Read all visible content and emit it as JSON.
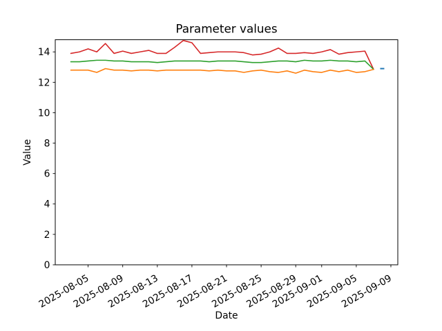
{
  "chart_data": {
    "type": "line",
    "title": "Parameter values",
    "xlabel": "Date",
    "ylabel": "Value",
    "ylim": [
      0,
      14.8
    ],
    "x_margin_frac": 0.05,
    "grid": false,
    "legend": "none",
    "background": "#ffffff",
    "yticks": [
      0,
      2,
      4,
      6,
      8,
      10,
      12,
      14
    ],
    "xticks": [
      "2025-08-05",
      "2025-08-09",
      "2025-08-13",
      "2025-08-17",
      "2025-08-21",
      "2025-08-25",
      "2025-08-29",
      "2025-09-01",
      "2025-09-05",
      "2025-09-09"
    ],
    "dates": [
      "2025-08-03",
      "2025-08-04",
      "2025-08-05",
      "2025-08-06",
      "2025-08-07",
      "2025-08-08",
      "2025-08-09",
      "2025-08-10",
      "2025-08-11",
      "2025-08-12",
      "2025-08-13",
      "2025-08-14",
      "2025-08-15",
      "2025-08-16",
      "2025-08-17",
      "2025-08-18",
      "2025-08-19",
      "2025-08-20",
      "2025-08-21",
      "2025-08-22",
      "2025-08-23",
      "2025-08-24",
      "2025-08-25",
      "2025-08-26",
      "2025-08-27",
      "2025-08-28",
      "2025-08-29",
      "2025-08-30",
      "2025-08-31",
      "2025-09-01",
      "2025-09-02",
      "2025-09-03",
      "2025-09-04",
      "2025-09-05",
      "2025-09-06",
      "2025-09-07"
    ],
    "series": [
      {
        "name": "series-red",
        "color": "#d62728",
        "values": [
          13.9,
          14.0,
          14.2,
          14.0,
          14.55,
          13.9,
          14.05,
          13.9,
          14.0,
          14.1,
          13.9,
          13.9,
          14.3,
          14.75,
          14.6,
          13.9,
          13.95,
          14.0,
          14.0,
          14.0,
          13.95,
          13.8,
          13.85,
          14.0,
          14.25,
          13.9,
          13.9,
          13.95,
          13.9,
          14.0,
          14.15,
          13.85,
          13.95,
          14.0,
          14.05,
          12.85
        ]
      },
      {
        "name": "series-green",
        "color": "#2ca02c",
        "values": [
          13.35,
          13.35,
          13.4,
          13.45,
          13.45,
          13.4,
          13.4,
          13.35,
          13.35,
          13.35,
          13.3,
          13.35,
          13.4,
          13.4,
          13.4,
          13.4,
          13.35,
          13.4,
          13.4,
          13.4,
          13.35,
          13.3,
          13.3,
          13.35,
          13.4,
          13.4,
          13.35,
          13.45,
          13.4,
          13.4,
          13.45,
          13.4,
          13.4,
          13.35,
          13.4,
          12.85
        ]
      },
      {
        "name": "series-orange",
        "color": "#ff7f0e",
        "values": [
          12.8,
          12.8,
          12.8,
          12.65,
          12.9,
          12.8,
          12.8,
          12.75,
          12.8,
          12.8,
          12.75,
          12.8,
          12.8,
          12.8,
          12.8,
          12.8,
          12.75,
          12.8,
          12.75,
          12.75,
          12.65,
          12.75,
          12.8,
          12.7,
          12.65,
          12.75,
          12.6,
          12.8,
          12.7,
          12.65,
          12.8,
          12.7,
          12.8,
          12.65,
          12.7,
          12.85
        ]
      },
      {
        "name": "series-blue-point",
        "color": "#1f77b4",
        "dates": [
          "2025-09-08"
        ],
        "values": [
          12.9
        ]
      }
    ]
  }
}
